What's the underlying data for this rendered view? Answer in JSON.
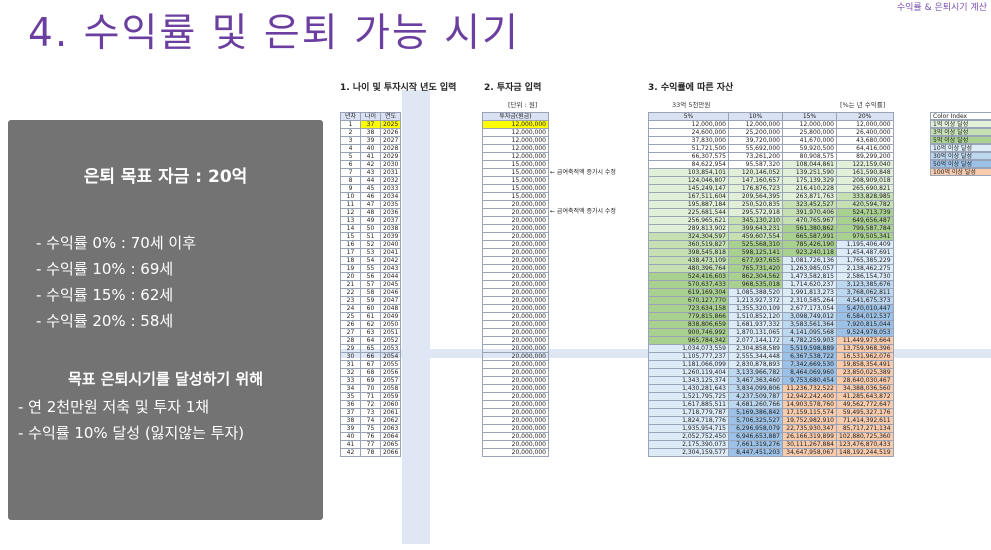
{
  "title": "4. 수익률 및 은퇴 가능 시기",
  "top_right": "수익률 & 은퇴시기 계산",
  "panel": {
    "goal": "은퇴 목표 자금 : 20억",
    "rates": [
      "- 수익률   0% : 70세 이후",
      "- 수익률 10% : 69세",
      "- 수익률 15% : 62세",
      "- 수익률 20% : 58세"
    ],
    "subtitle": "목표 은퇴시기를 달성하기 위해",
    "actions": [
      "- 연 2천만원 저축 및 투자 1채",
      "- 수익률 10% 달성 (잃지않는 투자)"
    ]
  },
  "sections": {
    "s1": "1. 나이 및 투자시작 년도 입력",
    "s2": "2. 투자금 입력",
    "s3": "3. 수익률에 따른 자산"
  },
  "captions": {
    "unit": "[단위 : 원]",
    "target": "33억 5천만원",
    "rate_note": "[%는 년 수익률]"
  },
  "notes": {
    "n1": "← 급여축적액 증가시 수정",
    "n2": "← 급여축적액 증가시 수정"
  },
  "table_headers": {
    "h1": "년차",
    "h2": "나이",
    "h3": "연도",
    "h4": "투자금(원금)",
    "r0": "5%",
    "r1": "10%",
    "r2": "15%",
    "r3": "20%"
  },
  "rows": [
    [
      "1",
      "37",
      "2025",
      "12,000,000",
      "12,000,000",
      "12,000,000",
      "12,000,000",
      "12,000,000"
    ],
    [
      "2",
      "38",
      "2026",
      "12,000,000",
      "24,600,000",
      "25,200,000",
      "25,800,000",
      "26,400,000"
    ],
    [
      "3",
      "39",
      "2027",
      "12,000,000",
      "37,830,000",
      "39,720,000",
      "41,670,000",
      "43,680,000"
    ],
    [
      "4",
      "40",
      "2028",
      "12,000,000",
      "51,721,500",
      "55,692,000",
      "59,920,500",
      "64,416,000"
    ],
    [
      "5",
      "41",
      "2029",
      "12,000,000",
      "66,307,575",
      "73,261,200",
      "80,908,575",
      "89,299,200"
    ],
    [
      "6",
      "42",
      "2030",
      "15,000,000",
      "84,622,954",
      "95,587,320",
      "108,044,861",
      "122,159,040"
    ],
    [
      "7",
      "43",
      "2031",
      "15,000,000",
      "103,854,101",
      "120,146,052",
      "139,251,590",
      "161,590,848"
    ],
    [
      "8",
      "44",
      "2032",
      "15,000,000",
      "124,046,807",
      "147,160,657",
      "175,139,329",
      "208,909,018"
    ],
    [
      "9",
      "45",
      "2033",
      "15,000,000",
      "145,249,147",
      "176,876,723",
      "216,410,228",
      "265,690,821"
    ],
    [
      "10",
      "46",
      "2034",
      "15,000,000",
      "167,511,604",
      "209,564,395",
      "263,871,763",
      "333,828,985"
    ],
    [
      "11",
      "47",
      "2035",
      "20,000,000",
      "195,887,184",
      "250,520,835",
      "323,452,527",
      "420,594,782"
    ],
    [
      "12",
      "48",
      "2036",
      "20,000,000",
      "225,681,544",
      "295,572,918",
      "391,970,406",
      "524,713,739"
    ],
    [
      "13",
      "49",
      "2037",
      "20,000,000",
      "256,965,621",
      "345,130,210",
      "470,765,967",
      "649,656,487"
    ],
    [
      "14",
      "50",
      "2038",
      "20,000,000",
      "289,813,902",
      "399,643,231",
      "561,380,862",
      "799,587,784"
    ],
    [
      "15",
      "51",
      "2039",
      "20,000,000",
      "324,304,597",
      "459,607,554",
      "665,587,991",
      "979,505,341"
    ],
    [
      "16",
      "52",
      "2040",
      "20,000,000",
      "360,519,827",
      "525,568,310",
      "785,426,190",
      "1,195,406,409"
    ],
    [
      "17",
      "53",
      "2041",
      "20,000,000",
      "398,545,818",
      "598,125,141",
      "923,240,118",
      "1,454,487,691"
    ],
    [
      "18",
      "54",
      "2042",
      "20,000,000",
      "438,473,109",
      "677,937,655",
      "1,081,726,136",
      "1,765,385,229"
    ],
    [
      "19",
      "55",
      "2043",
      "20,000,000",
      "480,396,764",
      "765,731,420",
      "1,263,985,057",
      "2,138,462,275"
    ],
    [
      "20",
      "56",
      "2044",
      "20,000,000",
      "524,416,603",
      "862,304,562",
      "1,473,582,815",
      "2,586,154,730"
    ],
    [
      "21",
      "57",
      "2045",
      "20,000,000",
      "570,637,433",
      "968,535,018",
      "1,714,620,237",
      "3,123,385,676"
    ],
    [
      "22",
      "58",
      "2046",
      "20,000,000",
      "619,169,304",
      "1,085,388,520",
      "1,991,813,273",
      "3,768,062,811"
    ],
    [
      "23",
      "59",
      "2047",
      "20,000,000",
      "670,127,770",
      "1,213,927,372",
      "2,310,585,264",
      "4,541,675,373"
    ],
    [
      "24",
      "60",
      "2048",
      "20,000,000",
      "723,634,158",
      "1,355,320,109",
      "2,677,173,054",
      "5,470,010,447"
    ],
    [
      "25",
      "61",
      "2049",
      "20,000,000",
      "779,815,866",
      "1,510,852,120",
      "3,098,749,012",
      "6,584,012,537"
    ],
    [
      "26",
      "62",
      "2050",
      "20,000,000",
      "838,806,659",
      "1,681,937,332",
      "3,583,561,364",
      "7,920,815,044"
    ],
    [
      "27",
      "63",
      "2051",
      "20,000,000",
      "900,746,992",
      "1,870,131,065",
      "4,141,095,568",
      "9,524,978,053"
    ],
    [
      "28",
      "64",
      "2052",
      "20,000,000",
      "965,784,342",
      "2,077,144,172",
      "4,782,259,903",
      "11,449,973,664"
    ],
    [
      "29",
      "65",
      "2053",
      "20,000,000",
      "1,034,073,559",
      "2,304,858,589",
      "5,519,598,889",
      "13,759,968,396"
    ],
    [
      "30",
      "66",
      "2054",
      "20,000,000",
      "1,105,777,237",
      "2,555,344,448",
      "6,367,538,722",
      "16,531,962,076"
    ],
    [
      "31",
      "67",
      "2055",
      "20,000,000",
      "1,181,066,099",
      "2,830,878,893",
      "7,342,669,530",
      "19,858,354,491"
    ],
    [
      "32",
      "68",
      "2056",
      "20,000,000",
      "1,260,119,404",
      "3,133,966,782",
      "8,464,069,960",
      "23,850,025,389"
    ],
    [
      "33",
      "69",
      "2057",
      "20,000,000",
      "1,343,125,374",
      "3,467,363,460",
      "9,753,680,454",
      "28,640,030,467"
    ],
    [
      "34",
      "70",
      "2058",
      "20,000,000",
      "1,430,281,643",
      "3,834,099,806",
      "11,236,732,522",
      "34,388,036,560"
    ],
    [
      "35",
      "71",
      "2059",
      "20,000,000",
      "1,521,795,725",
      "4,237,509,787",
      "12,942,242,400",
      "41,285,643,872"
    ],
    [
      "36",
      "72",
      "2060",
      "20,000,000",
      "1,617,885,511",
      "4,681,260,766",
      "14,903,578,760",
      "49,562,772,647"
    ],
    [
      "37",
      "73",
      "2061",
      "20,000,000",
      "1,718,779,787",
      "5,169,386,842",
      "17,159,115,574",
      "59,495,327,176"
    ],
    [
      "38",
      "74",
      "2062",
      "20,000,000",
      "1,824,718,776",
      "5,706,325,527",
      "19,752,982,910",
      "71,414,392,611"
    ],
    [
      "39",
      "75",
      "2063",
      "20,000,000",
      "1,935,954,715",
      "6,296,958,079",
      "22,735,930,347",
      "85,717,271,134"
    ],
    [
      "40",
      "76",
      "2064",
      "20,000,000",
      "2,052,752,450",
      "6,946,653,887",
      "26,166,319,899",
      "102,880,725,360"
    ],
    [
      "41",
      "77",
      "2065",
      "20,000,000",
      "2,175,390,073",
      "7,661,319,276",
      "30,111,267,884",
      "123,476,870,433"
    ],
    [
      "42",
      "78",
      "2066",
      "20,000,000",
      "2,304,159,577",
      "8,447,451,203",
      "34,647,958,067",
      "148,192,244,519"
    ]
  ],
  "legend": [
    "Color Index",
    "1억 이상 달성",
    "3억 이상 달성",
    "5억 이상 달성",
    "10억 이상 달성",
    "30억 이상 달성",
    "50억 이상 달성",
    "100억 이상 달성"
  ],
  "colors": {
    "accent": "#6b3fa0",
    "panel_bg": "#737373",
    "highlight": "#ffff00",
    "green1": "#e2f0d9",
    "green2": "#c6e0b4",
    "green3": "#a9d08e",
    "blue1": "#ddebf7",
    "blue2": "#bdd7ee",
    "teal": "#9bc2e6",
    "pink": "#f8cbad"
  }
}
